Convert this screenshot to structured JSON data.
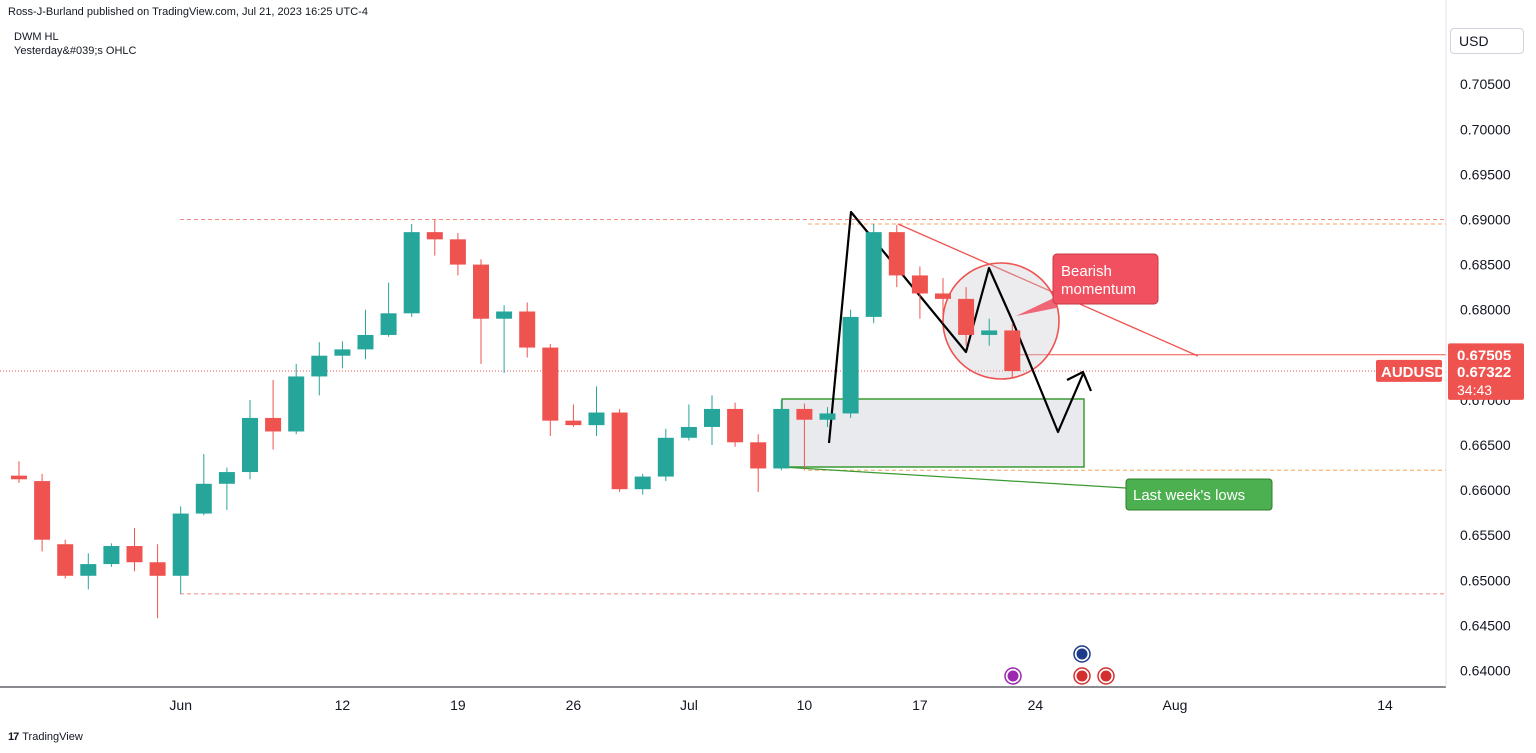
{
  "header": {
    "publisher": "Ross-J-Burland published on TradingView.com, Jul 21, 2023 16:25 UTC-4",
    "indicator_name": "DWM HL",
    "indicator_sub": "Yesterday&#039;s OHLC"
  },
  "toolbar": {
    "currency": "USD"
  },
  "footer": {
    "brand": "TradingView",
    "logo": "17"
  },
  "colors": {
    "bull": "#26a69a",
    "bear": "#ef5350",
    "dashed_red": "#f28b82",
    "dashed_orange": "#f7a35c",
    "green_box": "#3a9a32",
    "label_red": "#f05060",
    "label_green": "#4caf50",
    "axis_text": "#131722"
  },
  "chart_data": {
    "type": "candlestick",
    "symbol": "AUDUSD",
    "ylim": [
      0.638,
      0.709
    ],
    "y_ticks": [
      {
        "value": 0.705,
        "label": "0.70500"
      },
      {
        "value": 0.7,
        "label": "0.70000"
      },
      {
        "value": 0.695,
        "label": "0.69500"
      },
      {
        "value": 0.69,
        "label": "0.69000"
      },
      {
        "value": 0.685,
        "label": "0.68500"
      },
      {
        "value": 0.68,
        "label": "0.68000"
      },
      {
        "value": 0.675,
        "label": "0.67500"
      },
      {
        "value": 0.67,
        "label": "0.67000"
      },
      {
        "value": 0.665,
        "label": "0.66500"
      },
      {
        "value": 0.66,
        "label": "0.66000"
      },
      {
        "value": 0.655,
        "label": "0.65500"
      },
      {
        "value": 0.65,
        "label": "0.65000"
      },
      {
        "value": 0.645,
        "label": "0.64500"
      },
      {
        "value": 0.64,
        "label": "0.64000"
      }
    ],
    "x_ticks": [
      {
        "date": "2023-06-01",
        "label": "Jun"
      },
      {
        "date": "2023-06-12",
        "label": "12"
      },
      {
        "date": "2023-06-19",
        "label": "19"
      },
      {
        "date": "2023-06-26",
        "label": "26"
      },
      {
        "date": "2023-07-03",
        "label": "Jul"
      },
      {
        "date": "2023-07-10",
        "label": "10"
      },
      {
        "date": "2023-07-17",
        "label": "17"
      },
      {
        "date": "2023-07-24",
        "label": "24"
      },
      {
        "date": "2023-08-01",
        "label": "Aug"
      },
      {
        "date": "2023-08-14",
        "label": "14"
      }
    ],
    "candles": [
      {
        "date": "2023-05-23",
        "o": 0.6616,
        "h": 0.6632,
        "l": 0.6608,
        "c": 0.6612
      },
      {
        "date": "2023-05-24",
        "o": 0.661,
        "h": 0.6618,
        "l": 0.6532,
        "c": 0.6545
      },
      {
        "date": "2023-05-25",
        "o": 0.654,
        "h": 0.6545,
        "l": 0.6502,
        "c": 0.6505
      },
      {
        "date": "2023-05-26",
        "o": 0.6505,
        "h": 0.653,
        "l": 0.649,
        "c": 0.6518
      },
      {
        "date": "2023-05-29",
        "o": 0.6518,
        "h": 0.6541,
        "l": 0.6515,
        "c": 0.6538
      },
      {
        "date": "2023-05-30",
        "o": 0.6538,
        "h": 0.6558,
        "l": 0.651,
        "c": 0.652
      },
      {
        "date": "2023-05-31",
        "o": 0.652,
        "h": 0.654,
        "l": 0.6458,
        "c": 0.6505
      },
      {
        "date": "2023-06-01",
        "o": 0.6505,
        "h": 0.6582,
        "l": 0.6485,
        "c": 0.6574
      },
      {
        "date": "2023-06-02",
        "o": 0.6574,
        "h": 0.664,
        "l": 0.6572,
        "c": 0.6607
      },
      {
        "date": "2023-06-05",
        "o": 0.6607,
        "h": 0.6625,
        "l": 0.6578,
        "c": 0.662
      },
      {
        "date": "2023-06-06",
        "o": 0.662,
        "h": 0.67,
        "l": 0.6612,
        "c": 0.668
      },
      {
        "date": "2023-06-07",
        "o": 0.668,
        "h": 0.6722,
        "l": 0.6645,
        "c": 0.6665
      },
      {
        "date": "2023-06-08",
        "o": 0.6665,
        "h": 0.674,
        "l": 0.6662,
        "c": 0.6726
      },
      {
        "date": "2023-06-09",
        "o": 0.6726,
        "h": 0.6764,
        "l": 0.6705,
        "c": 0.6749
      },
      {
        "date": "2023-06-12",
        "o": 0.6749,
        "h": 0.6765,
        "l": 0.6735,
        "c": 0.6756
      },
      {
        "date": "2023-06-13",
        "o": 0.6756,
        "h": 0.68,
        "l": 0.6745,
        "c": 0.6772
      },
      {
        "date": "2023-06-14",
        "o": 0.6772,
        "h": 0.683,
        "l": 0.677,
        "c": 0.6796
      },
      {
        "date": "2023-06-15",
        "o": 0.6796,
        "h": 0.6895,
        "l": 0.6792,
        "c": 0.6886
      },
      {
        "date": "2023-06-16",
        "o": 0.6886,
        "h": 0.69,
        "l": 0.686,
        "c": 0.6878
      },
      {
        "date": "2023-06-19",
        "o": 0.6878,
        "h": 0.6885,
        "l": 0.6838,
        "c": 0.685
      },
      {
        "date": "2023-06-20",
        "o": 0.685,
        "h": 0.6856,
        "l": 0.674,
        "c": 0.679
      },
      {
        "date": "2023-06-21",
        "o": 0.679,
        "h": 0.6805,
        "l": 0.673,
        "c": 0.6798
      },
      {
        "date": "2023-06-22",
        "o": 0.6798,
        "h": 0.6808,
        "l": 0.6747,
        "c": 0.6758
      },
      {
        "date": "2023-06-23",
        "o": 0.6758,
        "h": 0.6762,
        "l": 0.666,
        "c": 0.6677
      },
      {
        "date": "2023-06-26",
        "o": 0.6677,
        "h": 0.6695,
        "l": 0.667,
        "c": 0.6672
      },
      {
        "date": "2023-06-27",
        "o": 0.6672,
        "h": 0.6715,
        "l": 0.666,
        "c": 0.6686
      },
      {
        "date": "2023-06-28",
        "o": 0.6686,
        "h": 0.669,
        "l": 0.6598,
        "c": 0.6601
      },
      {
        "date": "2023-06-29",
        "o": 0.6601,
        "h": 0.6618,
        "l": 0.6595,
        "c": 0.6615
      },
      {
        "date": "2023-06-30",
        "o": 0.6615,
        "h": 0.6668,
        "l": 0.661,
        "c": 0.6658
      },
      {
        "date": "2023-07-03",
        "o": 0.6658,
        "h": 0.6695,
        "l": 0.6655,
        "c": 0.667
      },
      {
        "date": "2023-07-04",
        "o": 0.667,
        "h": 0.6705,
        "l": 0.665,
        "c": 0.669
      },
      {
        "date": "2023-07-05",
        "o": 0.669,
        "h": 0.6697,
        "l": 0.6648,
        "c": 0.6653
      },
      {
        "date": "2023-07-06",
        "o": 0.6653,
        "h": 0.6662,
        "l": 0.6598,
        "c": 0.6624
      },
      {
        "date": "2023-07-07",
        "o": 0.6624,
        "h": 0.67,
        "l": 0.6622,
        "c": 0.669
      },
      {
        "date": "2023-07-10",
        "o": 0.669,
        "h": 0.6696,
        "l": 0.6622,
        "c": 0.6678
      },
      {
        "date": "2023-07-11",
        "o": 0.6678,
        "h": 0.6692,
        "l": 0.667,
        "c": 0.6685
      },
      {
        "date": "2023-07-12",
        "o": 0.6685,
        "h": 0.68,
        "l": 0.668,
        "c": 0.6792
      },
      {
        "date": "2023-07-13",
        "o": 0.6792,
        "h": 0.6895,
        "l": 0.6785,
        "c": 0.6886
      },
      {
        "date": "2023-07-14",
        "o": 0.6886,
        "h": 0.6894,
        "l": 0.6825,
        "c": 0.6838
      },
      {
        "date": "2023-07-17",
        "o": 0.6838,
        "h": 0.6848,
        "l": 0.679,
        "c": 0.6818
      },
      {
        "date": "2023-07-18",
        "o": 0.6818,
        "h": 0.6835,
        "l": 0.6785,
        "c": 0.6812
      },
      {
        "date": "2023-07-19",
        "o": 0.6812,
        "h": 0.6825,
        "l": 0.676,
        "c": 0.6772
      },
      {
        "date": "2023-07-20",
        "o": 0.6772,
        "h": 0.679,
        "l": 0.676,
        "c": 0.6777
      },
      {
        "date": "2023-07-21",
        "o": 0.6777,
        "h": 0.6784,
        "l": 0.6725,
        "c": 0.6732
      }
    ],
    "horizontal_levels": [
      {
        "value": 0.69,
        "style": "dashed-red"
      },
      {
        "value": 0.6895,
        "style": "dashed-orange"
      },
      {
        "value": 0.675,
        "style": "solid-red"
      },
      {
        "value": 0.6732,
        "style": "dotted-red"
      },
      {
        "value": 0.6622,
        "style": "dashed-orange"
      },
      {
        "value": 0.6485,
        "style": "dashed-red"
      }
    ],
    "price_labels": {
      "level": "0.67505",
      "current": "0.67322",
      "countdown": "34:43"
    },
    "annotations": [
      {
        "text_lines": [
          "Bearish",
          "momentum"
        ],
        "color": "red"
      },
      {
        "text_lines": [
          "Last week's lows"
        ],
        "color": "green"
      }
    ],
    "grid": false
  }
}
